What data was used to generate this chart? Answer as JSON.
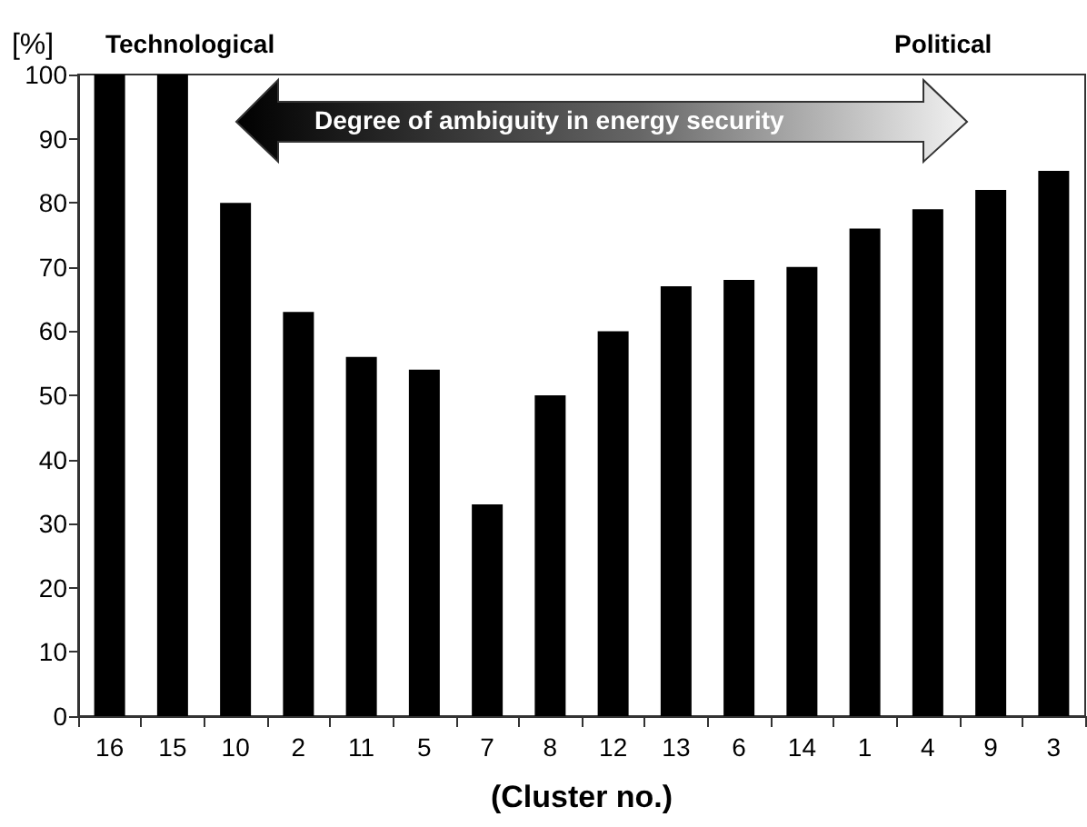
{
  "chart_data": {
    "type": "bar",
    "xlabel": "(Cluster no.)",
    "ylabel": "[%]",
    "annotations": [
      "Technological",
      "Political",
      "Degree of ambiguity in energy security"
    ],
    "categories": [
      "16",
      "15",
      "10",
      "2",
      "11",
      "5",
      "7",
      "8",
      "12",
      "13",
      "6",
      "14",
      "1",
      "4",
      "9",
      "3"
    ],
    "values": [
      100,
      100,
      80,
      63,
      56,
      54,
      33,
      50,
      60,
      67,
      68,
      70,
      76,
      79,
      82,
      85
    ],
    "color": "#000000",
    "ylim": [
      0,
      100
    ],
    "yticks": [
      0,
      10,
      20,
      30,
      40,
      50,
      60,
      70,
      80,
      90,
      100
    ],
    "grid": false
  }
}
